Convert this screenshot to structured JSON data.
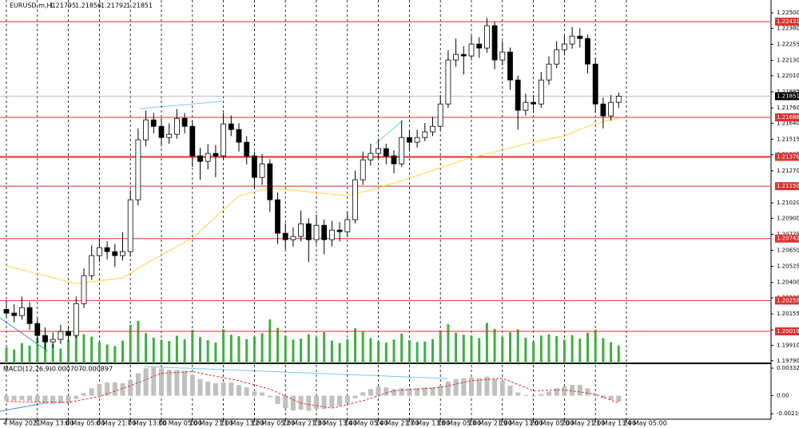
{
  "chart_data": {
    "type": "candlestick",
    "symbol": "EURUSD,m,H1",
    "last_bar": [
      1.21795,
      1.21856,
      1.21792,
      1.21851
    ],
    "candles": [
      [
        1.2019,
        1.2026,
        1.2012,
        1.20161
      ],
      [
        1.20161,
        1.2023,
        1.2009,
        1.20142
      ],
      [
        1.20142,
        1.2029,
        1.2011,
        1.20204
      ],
      [
        1.20204,
        1.2025,
        1.2003,
        1.2008
      ],
      [
        1.2008,
        1.2012,
        1.1993,
        1.19987
      ],
      [
        1.19987,
        1.2005,
        1.1988,
        1.19937
      ],
      [
        1.19937,
        1.2001,
        1.1989,
        1.19956
      ],
      [
        1.19956,
        1.2007,
        1.1992,
        1.20018
      ],
      [
        1.20018,
        1.2006,
        1.1994,
        1.19987
      ],
      [
        1.19987,
        1.2029,
        1.1997,
        1.20235
      ],
      [
        1.20235,
        1.2051,
        1.202,
        1.20453
      ],
      [
        1.20453,
        1.2069,
        1.2042,
        1.20609
      ],
      [
        1.20609,
        1.2074,
        1.2056,
        1.20671
      ],
      [
        1.20671,
        1.2072,
        1.2058,
        1.2064
      ],
      [
        1.2064,
        1.207,
        1.2052,
        1.20609
      ],
      [
        1.20609,
        1.2079,
        1.2057,
        1.2064
      ],
      [
        1.2064,
        1.2112,
        1.206,
        1.21044
      ],
      [
        1.21044,
        1.216,
        1.21,
        1.21511
      ],
      [
        1.21511,
        1.2174,
        1.2146,
        1.21666
      ],
      [
        1.21666,
        1.2172,
        1.2156,
        1.21616
      ],
      [
        1.21616,
        1.2168,
        1.2146,
        1.21529
      ],
      [
        1.21529,
        1.2164,
        1.2148,
        1.21554
      ],
      [
        1.21554,
        1.2175,
        1.2152,
        1.21678
      ],
      [
        1.21678,
        1.2172,
        1.2156,
        1.21616
      ],
      [
        1.21616,
        1.2166,
        1.213,
        1.21386
      ],
      [
        1.21386,
        1.2145,
        1.212,
        1.21343
      ],
      [
        1.21343,
        1.2148,
        1.2128,
        1.21405
      ],
      [
        1.21405,
        1.2147,
        1.2122,
        1.21386
      ],
      [
        1.21386,
        1.2172,
        1.2136,
        1.21635
      ],
      [
        1.21635,
        1.217,
        1.2154,
        1.21591
      ],
      [
        1.21591,
        1.2164,
        1.2142,
        1.21492
      ],
      [
        1.21492,
        1.2154,
        1.2132,
        1.21386
      ],
      [
        1.21386,
        1.2142,
        1.2113,
        1.21218
      ],
      [
        1.21218,
        1.214,
        1.2116,
        1.21324
      ],
      [
        1.21324,
        1.2136,
        1.2095,
        1.21044
      ],
      [
        1.21044,
        1.211,
        1.207,
        1.20783
      ],
      [
        1.20783,
        1.2086,
        1.2066,
        1.20733
      ],
      [
        1.20733,
        1.2083,
        1.2068,
        1.20758
      ],
      [
        1.20758,
        1.2096,
        1.2072,
        1.20857
      ],
      [
        1.20857,
        1.209,
        1.2056,
        1.20733
      ],
      [
        1.20733,
        1.2093,
        1.207,
        1.20845
      ],
      [
        1.20845,
        1.2089,
        1.2062,
        1.20733
      ],
      [
        1.20733,
        1.2088,
        1.2068,
        1.20808
      ],
      [
        1.20808,
        1.2087,
        1.2072,
        1.20795
      ],
      [
        1.20795,
        1.2095,
        1.2076,
        1.20889
      ],
      [
        1.20889,
        1.2127,
        1.2086,
        1.212
      ],
      [
        1.212,
        1.2142,
        1.2116,
        1.21355
      ],
      [
        1.21355,
        1.2148,
        1.2131,
        1.21405
      ],
      [
        1.21405,
        1.2152,
        1.2136,
        1.21442
      ],
      [
        1.21442,
        1.2148,
        1.2132,
        1.21386
      ],
      [
        1.21386,
        1.2143,
        1.2125,
        1.21324
      ],
      [
        1.21324,
        1.2166,
        1.213,
        1.21529
      ],
      [
        1.21529,
        1.2158,
        1.2142,
        1.21492
      ],
      [
        1.21492,
        1.2159,
        1.2145,
        1.21529
      ],
      [
        1.21529,
        1.2164,
        1.215,
        1.21573
      ],
      [
        1.21573,
        1.2169,
        1.2154,
        1.21616
      ],
      [
        1.21616,
        1.2186,
        1.2159,
        1.2179
      ],
      [
        1.2179,
        1.2221,
        1.2176,
        1.22133
      ],
      [
        1.22133,
        1.223,
        1.2208,
        1.22176
      ],
      [
        1.22176,
        1.2224,
        1.2202,
        1.22164
      ],
      [
        1.22164,
        1.2232,
        1.2213,
        1.22257
      ],
      [
        1.22257,
        1.2231,
        1.2215,
        1.22226
      ],
      [
        1.22226,
        1.2246,
        1.2219,
        1.224
      ],
      [
        1.224,
        1.2243,
        1.2206,
        1.22133
      ],
      [
        1.22133,
        1.2228,
        1.2209,
        1.22195
      ],
      [
        1.22195,
        1.2223,
        1.219,
        1.21977
      ],
      [
        1.21977,
        1.2201,
        1.2159,
        1.21741
      ],
      [
        1.21741,
        1.2187,
        1.217,
        1.21803
      ],
      [
        1.21803,
        1.2186,
        1.2172,
        1.2179
      ],
      [
        1.2179,
        1.2204,
        1.2176,
        1.21977
      ],
      [
        1.21977,
        1.2216,
        1.2194,
        1.22101
      ],
      [
        1.22101,
        1.2228,
        1.2207,
        1.22213
      ],
      [
        1.22213,
        1.2232,
        1.2217,
        1.22257
      ],
      [
        1.22257,
        1.2239,
        1.2222,
        1.22319
      ],
      [
        1.22319,
        1.2238,
        1.2223,
        1.223
      ],
      [
        1.223,
        1.2233,
        1.2203,
        1.22101
      ],
      [
        1.22101,
        1.2215,
        1.2172,
        1.2179
      ],
      [
        1.2179,
        1.2184,
        1.216,
        1.21697
      ],
      [
        1.21697,
        1.2186,
        1.2166,
        1.21803
      ],
      [
        1.21803,
        1.2188,
        1.2176,
        1.21851
      ]
    ],
    "volume": [
      3200,
      2800,
      4100,
      3600,
      5200,
      4400,
      3900,
      3000,
      4700,
      6200,
      5900,
      5400,
      4300,
      3800,
      3500,
      4600,
      7800,
      8600,
      6100,
      5200,
      4800,
      4500,
      5600,
      4900,
      6800,
      5300,
      4700,
      4200,
      6900,
      5800,
      5500,
      4900,
      5400,
      6100,
      8900,
      7200,
      5600,
      4800,
      5000,
      5900,
      5200,
      6300,
      4600,
      4100,
      4900,
      7100,
      6400,
      5100,
      4500,
      4200,
      4800,
      6000,
      4700,
      4300,
      4400,
      4900,
      6700,
      7900,
      6200,
      5800,
      5600,
      5100,
      8200,
      7000,
      5300,
      6300,
      6900,
      5200,
      4400,
      5600,
      5900,
      5500,
      4800,
      5700,
      5000,
      6200,
      6800,
      5100,
      4300,
      3600
    ],
    "ma": {
      "color": "#ffd43b",
      "x": [
        0,
        5,
        9,
        15,
        18,
        24,
        30,
        34,
        39,
        44,
        48,
        53,
        59,
        63,
        67,
        72,
        75,
        77,
        79
      ],
      "values": [
        1.20528,
        1.20453,
        1.20391,
        1.20435,
        1.20546,
        1.20745,
        1.21075,
        1.21137,
        1.21106,
        1.21075,
        1.21137,
        1.21231,
        1.21355,
        1.21417,
        1.21479,
        1.21542,
        1.21616,
        1.21654,
        1.21678
      ]
    },
    "ylim": [
      1.1977,
      1.226
    ],
    "yticks": [
      {
        "value": 1.225,
        "label": "1.22500"
      },
      {
        "value": 1.2238,
        "label": "1.22380"
      },
      1.22255,
      {
        "value": 1.2213,
        "label": "1.22130"
      },
      {
        "value": 1.2201,
        "label": "1.22010"
      },
      1.21885,
      {
        "value": 1.2176,
        "label": "1.21760"
      },
      {
        "value": 1.2164,
        "label": "1.21640"
      },
      1.21515,
      1.21395,
      {
        "value": 1.2127,
        "label": "1.21270"
      },
      {
        "value": 1.2102,
        "label": "1.21020"
      },
      {
        "value": 1.209,
        "label": "1.20900"
      },
      1.20775,
      {
        "value": 1.2065,
        "label": "1.20650"
      },
      1.20525,
      {
        "value": 1.204,
        "label": "1.20400"
      },
      {
        "value": 1.2028,
        "label": "1.20280"
      },
      1.20155,
      {
        "value": 1.2003,
        "label": "1.20030"
      },
      {
        "value": 1.1991,
        "label": "1.19910"
      },
      {
        "value": 1.1979,
        "label": "1.19790"
      }
    ],
    "levels": [
      1.22431,
      1.21686,
      1.21378,
      {
        "value": 1.2115,
        "label": "1.21150"
      },
      1.20742,
      1.20259,
      1.20019
    ],
    "level_color": "#e03030",
    "current_price": 1.21851,
    "xticks": [
      {
        "value": 0,
        "label": "4 May 2021"
      },
      {
        "value": 4,
        "label": "5 May 13:00"
      },
      {
        "value": 8,
        "label": "6 May 05:00"
      },
      {
        "value": 12,
        "label": "6 May 21:00"
      },
      {
        "value": 16,
        "label": "7 May 13:00"
      },
      {
        "value": 20,
        "label": "10 May 05:00"
      },
      {
        "value": 24,
        "label": "10 May 21:00"
      },
      {
        "value": 28,
        "label": "11 May 13:00"
      },
      {
        "value": 32,
        "label": "12 May 05:00"
      },
      {
        "value": 36,
        "label": "12 May 21:00"
      },
      {
        "value": 40,
        "label": "13 May 13:00"
      },
      {
        "value": 44,
        "label": "14 May 05:00"
      },
      {
        "value": 48,
        "label": "14 May 21:00"
      },
      {
        "value": 52,
        "label": "17 May 13:00"
      },
      {
        "value": 56,
        "label": "18 May 05:00"
      },
      {
        "value": 60,
        "label": "18 May 21:00"
      },
      {
        "value": 64,
        "label": "19 May 13:00"
      },
      {
        "value": 68,
        "label": "20 May 05:00"
      },
      {
        "value": 72,
        "label": "20 May 21:00"
      },
      {
        "value": 76,
        "label": "21 May 13:00"
      },
      {
        "value": 80,
        "label": "24 May 05:00"
      }
    ],
    "grid": true,
    "macd": {
      "title": "MACD(12,26,9)",
      "last": [
        -0.000707,
        -0.000897
      ],
      "ylim": [
        -0.00283,
        0.00371
      ],
      "yticks": [
        0.003322,
        {
          "value": 0,
          "label": "0.00"
        },
        -0.002169
      ],
      "values": [
        -0.0006,
        -0.0006,
        -0.0005,
        -0.0006,
        -0.0008,
        -0.001,
        -0.001,
        -0.0009,
        -0.0009,
        -0.0004,
        0.0003,
        0.0009,
        0.0014,
        0.0016,
        0.0016,
        0.0015,
        0.0019,
        0.0027,
        0.0033,
        0.0035,
        0.0033,
        0.0031,
        0.0031,
        0.003,
        0.0025,
        0.002,
        0.0017,
        0.0015,
        0.0016,
        0.0016,
        0.0013,
        0.001,
        0.0005,
        0.0004,
        -0.0002,
        -0.001,
        -0.0015,
        -0.0018,
        -0.0017,
        -0.0018,
        -0.0016,
        -0.0016,
        -0.0014,
        -0.0012,
        -0.0009,
        -0.0003,
        0.0004,
        0.0008,
        0.0011,
        0.001,
        0.0008,
        0.0009,
        0.0009,
        0.0009,
        0.001,
        0.001,
        0.0012,
        0.0017,
        0.002,
        0.0021,
        0.0022,
        0.0021,
        0.0023,
        0.002,
        0.0018,
        0.0012,
        0.0004,
        0.0001,
        -0.0001,
        0.0002,
        0.0005,
        0.0009,
        0.0011,
        0.0013,
        0.0013,
        0.0009,
        0.0002,
        -0.0003,
        -0.0005,
        -0.000707
      ],
      "signal": {
        "color": "#e03030",
        "x": [
          0,
          8,
          12,
          16,
          20,
          24,
          30,
          34,
          38,
          42,
          46,
          50,
          56,
          60,
          64,
          68,
          72,
          76,
          79
        ],
        "values": [
          -0.0007,
          -0.0008,
          -0.0001,
          0.0012,
          0.0027,
          0.0029,
          0.0018,
          0.0008,
          -0.0009,
          -0.0015,
          -0.0006,
          0.0006,
          0.001,
          0.0018,
          0.0021,
          0.0006,
          0.0007,
          0.0002,
          -0.000897
        ]
      }
    }
  }
}
